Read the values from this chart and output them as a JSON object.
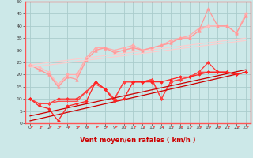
{
  "xlabel": "Vent moyen/en rafales ( km/h )",
  "bg_color": "#cce8e8",
  "grid_color": "#aacccc",
  "xlim": [
    -0.5,
    23.5
  ],
  "ylim": [
    0,
    50
  ],
  "yticks": [
    0,
    5,
    10,
    15,
    20,
    25,
    30,
    35,
    40,
    45,
    50
  ],
  "xticks": [
    0,
    1,
    2,
    3,
    4,
    5,
    6,
    7,
    8,
    9,
    10,
    11,
    12,
    13,
    14,
    15,
    16,
    17,
    18,
    19,
    20,
    21,
    22,
    23
  ],
  "lines": [
    {
      "x": [
        0,
        1,
        2,
        3,
        4,
        5,
        6,
        7,
        8,
        9,
        10,
        11,
        12,
        13,
        14,
        15,
        16,
        17,
        18,
        19,
        20,
        21,
        22,
        23
      ],
      "y": [
        24,
        22,
        20,
        16,
        20,
        20,
        27,
        31,
        31,
        30,
        31,
        32,
        30,
        31,
        32,
        34,
        35,
        36,
        39,
        40,
        40,
        40,
        37,
        45
      ],
      "color": "#ffaaaa",
      "lw": 0.9,
      "marker": "D",
      "ms": 2.0
    },
    {
      "x": [
        0,
        1,
        2,
        3,
        4,
        5,
        6,
        7,
        8,
        9,
        10,
        11,
        12,
        13,
        14,
        15,
        16,
        17,
        18,
        19,
        20,
        21,
        22,
        23
      ],
      "y": [
        24,
        23,
        21,
        16,
        19,
        19,
        26,
        30,
        31,
        29,
        30,
        31,
        30,
        31,
        32,
        33,
        35,
        35,
        38,
        40,
        40,
        40,
        37,
        44
      ],
      "color": "#ffbbbb",
      "lw": 0.9,
      "marker": "D",
      "ms": 1.8
    },
    {
      "x": [
        0,
        1,
        2,
        3,
        4,
        5,
        6,
        7,
        8,
        9,
        10,
        11,
        12,
        13,
        14,
        15,
        16,
        17,
        18,
        19,
        20,
        21,
        22,
        23
      ],
      "y": [
        24,
        22,
        20,
        15,
        19,
        18,
        26,
        30,
        31,
        29,
        30,
        31,
        30,
        31,
        32,
        33,
        35,
        35,
        38,
        47,
        40,
        40,
        37,
        44
      ],
      "color": "#ff9999",
      "lw": 0.9,
      "marker": "^",
      "ms": 2.5
    },
    {
      "x": [
        0,
        23
      ],
      "y": [
        24,
        35
      ],
      "color": "#ffcccc",
      "lw": 0.8,
      "marker": null,
      "ms": 0
    },
    {
      "x": [
        0,
        23
      ],
      "y": [
        23,
        34
      ],
      "color": "#ffcccc",
      "lw": 0.8,
      "marker": null,
      "ms": 0
    },
    {
      "x": [
        0,
        1,
        2,
        3,
        4,
        5,
        6,
        7,
        8,
        9,
        10,
        11,
        12,
        13,
        14,
        15,
        16,
        17,
        18,
        19,
        20,
        21,
        22,
        23
      ],
      "y": [
        10,
        8,
        8,
        10,
        10,
        10,
        13,
        17,
        14,
        10,
        17,
        17,
        17,
        18,
        10,
        17,
        18,
        19,
        21,
        25,
        21,
        21,
        20,
        21
      ],
      "color": "#ff3333",
      "lw": 0.9,
      "marker": "D",
      "ms": 2.0
    },
    {
      "x": [
        0,
        1,
        2,
        3,
        4,
        5,
        6,
        7,
        8,
        9,
        10,
        11,
        12,
        13,
        14,
        15,
        16,
        17,
        18,
        19,
        20,
        21,
        22,
        23
      ],
      "y": [
        10,
        8,
        8,
        9,
        9,
        9,
        13,
        16,
        14,
        10,
        17,
        17,
        17,
        18,
        10,
        17,
        18,
        19,
        21,
        21,
        21,
        21,
        20,
        21
      ],
      "color": "#ff4444",
      "lw": 0.9,
      "marker": "+",
      "ms": 2.5
    },
    {
      "x": [
        0,
        23
      ],
      "y": [
        3,
        22
      ],
      "color": "#cc0000",
      "lw": 0.9,
      "marker": null,
      "ms": 0
    },
    {
      "x": [
        0,
        23
      ],
      "y": [
        1,
        21
      ],
      "color": "#cc0000",
      "lw": 0.9,
      "marker": null,
      "ms": 0
    },
    {
      "x": [
        0,
        1,
        2,
        3,
        4,
        5,
        6,
        7,
        8,
        9,
        10,
        11,
        12,
        13,
        14,
        15,
        16,
        17,
        18,
        19,
        20,
        21,
        22,
        23
      ],
      "y": [
        10,
        7,
        6,
        1,
        7,
        8,
        9,
        17,
        14,
        9,
        10,
        17,
        17,
        17,
        17,
        18,
        19,
        19,
        20,
        21,
        21,
        21,
        20,
        21
      ],
      "color": "#ff2222",
      "lw": 0.9,
      "marker": "D",
      "ms": 1.8
    }
  ]
}
